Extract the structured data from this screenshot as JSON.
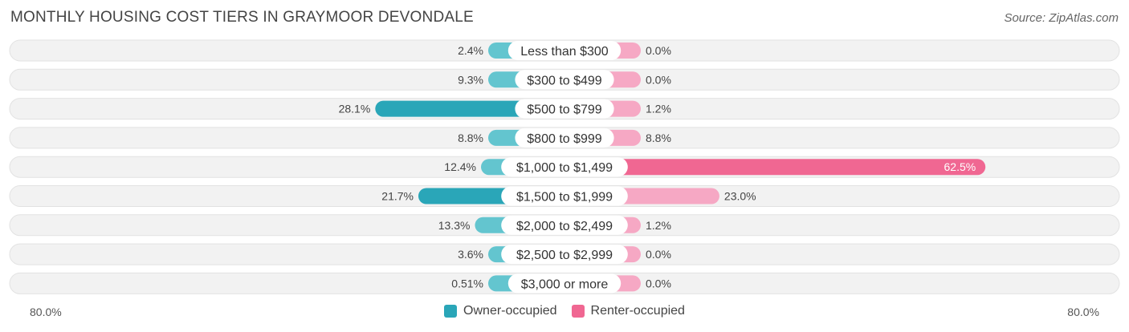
{
  "title": "MONTHLY HOUSING COST TIERS IN GRAYMOOR DEVONDALE",
  "source": "Source: ZipAtlas.com",
  "axis": {
    "left_label": "80.0%",
    "right_label": "80.0%"
  },
  "colors": {
    "owner": "#63c5cf",
    "owner_strong": "#2aa6b8",
    "renter": "#f6a8c4",
    "renter_strong": "#f06792",
    "row_bg": "#f2f2f2"
  },
  "chart_data": {
    "type": "bar",
    "orientation": "horizontal-diverging",
    "categories": [
      "Less than $300",
      "$300 to $499",
      "$500 to $799",
      "$800 to $999",
      "$1,000 to $1,499",
      "$1,500 to $1,999",
      "$2,000 to $2,499",
      "$2,500 to $2,999",
      "$3,000 or more"
    ],
    "series": [
      {
        "name": "Owner-occupied",
        "values": [
          2.4,
          9.3,
          28.1,
          8.8,
          12.4,
          21.7,
          13.3,
          3.6,
          0.51
        ],
        "labels": [
          "2.4%",
          "9.3%",
          "28.1%",
          "8.8%",
          "12.4%",
          "21.7%",
          "13.3%",
          "3.6%",
          "0.51%"
        ]
      },
      {
        "name": "Renter-occupied",
        "values": [
          0.0,
          0.0,
          1.2,
          8.8,
          62.5,
          23.0,
          1.2,
          0.0,
          0.0
        ],
        "labels": [
          "0.0%",
          "0.0%",
          "1.2%",
          "8.8%",
          "62.5%",
          "23.0%",
          "1.2%",
          "0.0%",
          "0.0%"
        ]
      }
    ],
    "xlim": [
      -80,
      80
    ],
    "legend": "bottom-center"
  }
}
